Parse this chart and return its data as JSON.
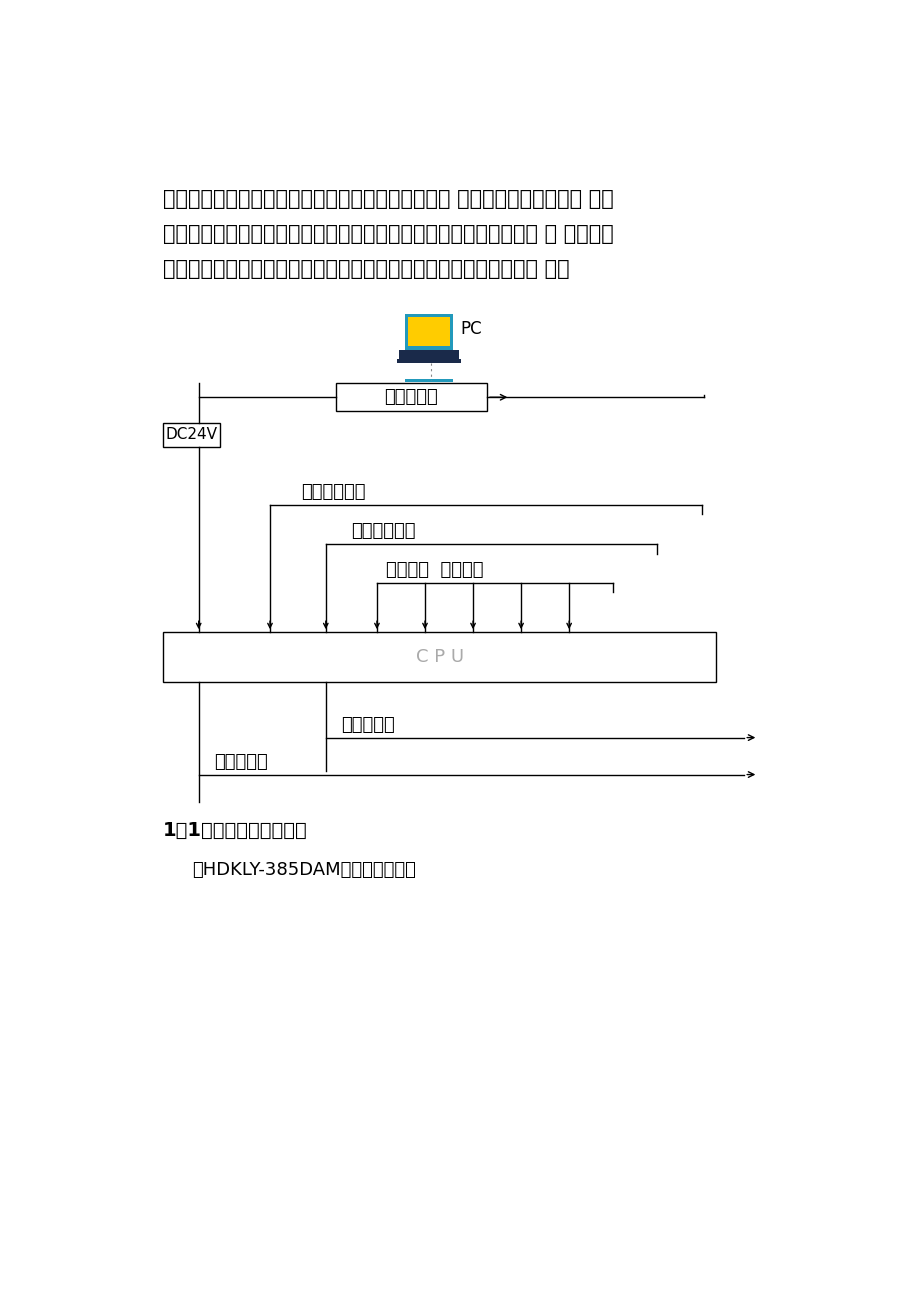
{
  "bg_color": "#ffffff",
  "text_color": "#000000",
  "paragraph1": "心，完成机组的数据采集、故障检测和流程控制功能 控制屏作为操作平台。 主要",
  "paragraph2": "采集温度、压力信号，并根据设定温度对压缩机进行制冷剂流量控制 可 进行工作",
  "paragraph3": "状态参数的设定和修改、实现故障报警、系统运行状态信息显示等功 能。",
  "pc_label": "PC",
  "lcd_label": "液晶显示屏",
  "dc24v_label": "DC24V",
  "signal1_label": "数字输入信号",
  "signal2_label": "数字输入信号",
  "signal3_label": "压力信号  温度信号",
  "cpu_label": "C P U",
  "output1_label": "输出数字量",
  "output2_label": "输出数字量",
  "section_heading": "1．1．控制系统操作面板",
  "sub_text": "以HDKLY-385DAM操作面板为例：",
  "lw": 1.0,
  "line_color": "#000000",
  "cpu_text_color": "#aaaaaa"
}
